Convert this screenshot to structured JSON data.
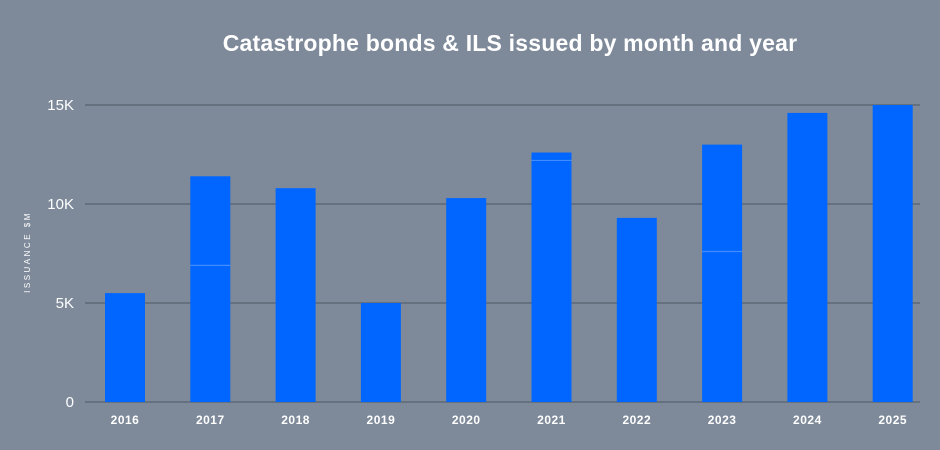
{
  "chart_data": {
    "type": "bar",
    "title": "Catastrophe bonds & ILS issued by month and year",
    "xlabel": "",
    "ylabel": "ISSUANCE $M",
    "ylim": [
      0,
      15000
    ],
    "yticks": [
      0,
      5000,
      10000,
      15000
    ],
    "ytick_labels": [
      "0",
      "5K",
      "10K",
      "15K"
    ],
    "grid": true,
    "categories": [
      "2016",
      "2017",
      "2018",
      "2019",
      "2020",
      "2021",
      "2022",
      "2023",
      "2024",
      "2025"
    ],
    "values": [
      5500,
      11400,
      10800,
      5000,
      10300,
      12600,
      9300,
      13000,
      14600,
      15000
    ],
    "segment_breaks": [
      [],
      [
        6900
      ],
      [],
      [],
      [],
      [
        12200
      ],
      [],
      [
        7600
      ],
      [],
      []
    ],
    "colors": {
      "bar": "#0066ff",
      "background": "#7e8a9a",
      "grid": "#4d5866",
      "text": "#ffffff"
    }
  }
}
